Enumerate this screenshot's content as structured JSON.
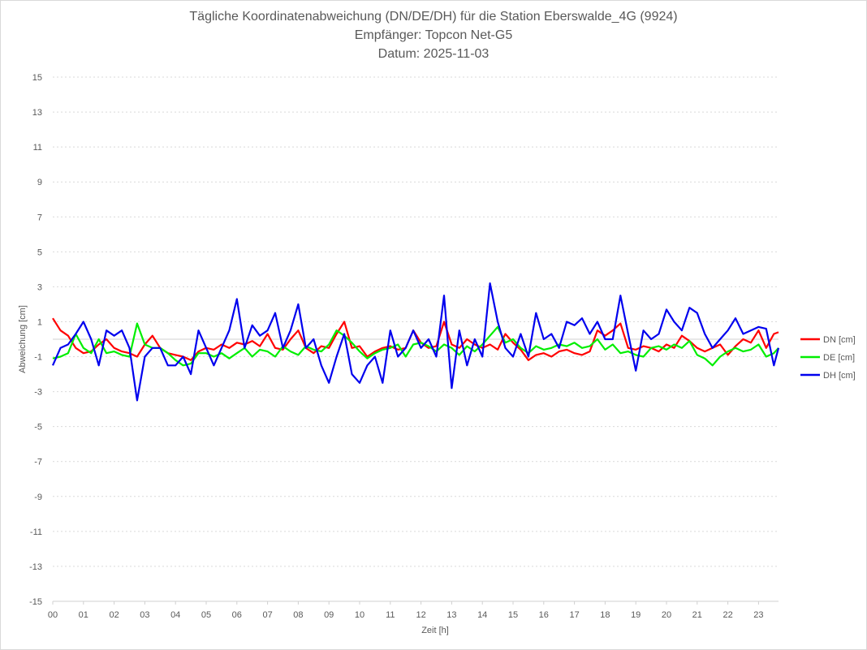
{
  "chart_data": {
    "type": "line",
    "title": "Tägliche Koordinatenabweichung (DN/DE/DH) für die Station Eberswalde_4G (9924)",
    "subtitle": [
      "Empfänger: Topcon Net-G5",
      "Datum: 2025-11-03"
    ],
    "xlabel": "Zeit [h]",
    "ylabel": "Abweichung [cm]",
    "xlim": [
      0,
      23.65
    ],
    "ylim": [
      -15,
      15
    ],
    "x_ticks": [
      "00",
      "01",
      "02",
      "03",
      "04",
      "05",
      "06",
      "07",
      "08",
      "09",
      "10",
      "11",
      "12",
      "13",
      "14",
      "15",
      "16",
      "17",
      "18",
      "19",
      "20",
      "21",
      "22",
      "23"
    ],
    "y_ticks": [
      15,
      13,
      11,
      9,
      7,
      5,
      3,
      1,
      -1,
      -3,
      -5,
      -7,
      -9,
      -11,
      -13,
      -15
    ],
    "grid": true,
    "legend_position": "right",
    "x": [
      0,
      0.25,
      0.5,
      0.75,
      1,
      1.25,
      1.5,
      1.75,
      2,
      2.25,
      2.5,
      2.75,
      3,
      3.25,
      3.5,
      3.75,
      4,
      4.25,
      4.5,
      4.75,
      5,
      5.25,
      5.5,
      5.75,
      6,
      6.25,
      6.5,
      6.75,
      7,
      7.25,
      7.5,
      7.75,
      8,
      8.25,
      8.5,
      8.75,
      9,
      9.25,
      9.5,
      9.75,
      10,
      10.25,
      10.5,
      10.75,
      11,
      11.25,
      11.5,
      11.75,
      12,
      12.25,
      12.5,
      12.75,
      13,
      13.25,
      13.5,
      13.75,
      14,
      14.25,
      14.5,
      14.75,
      15,
      15.25,
      15.5,
      15.75,
      16,
      16.25,
      16.5,
      16.75,
      17,
      17.25,
      17.5,
      17.75,
      18,
      18.25,
      18.5,
      18.75,
      19,
      19.25,
      19.5,
      19.75,
      20,
      20.25,
      20.5,
      20.75,
      21,
      21.25,
      21.5,
      21.75,
      22,
      22.25,
      22.5,
      22.75,
      23,
      23.25,
      23.5,
      23.65
    ],
    "series": [
      {
        "name": "DN [cm]",
        "color": "#ff0000",
        "values": [
          1.2,
          0.5,
          0.2,
          -0.5,
          -0.8,
          -0.7,
          -0.3,
          0.0,
          -0.5,
          -0.7,
          -0.8,
          -1.0,
          -0.3,
          0.2,
          -0.5,
          -0.8,
          -0.9,
          -1.0,
          -1.2,
          -0.7,
          -0.5,
          -0.6,
          -0.3,
          -0.5,
          -0.2,
          -0.3,
          -0.1,
          -0.4,
          0.3,
          -0.5,
          -0.6,
          0.0,
          0.5,
          -0.5,
          -0.8,
          -0.4,
          -0.5,
          0.3,
          1.0,
          -0.5,
          -0.4,
          -1.0,
          -0.7,
          -0.5,
          -0.4,
          -0.6,
          -0.5,
          0.5,
          -0.2,
          -0.5,
          -0.4,
          1.0,
          -0.3,
          -0.5,
          0.0,
          -0.3,
          -0.5,
          -0.3,
          -0.6,
          0.3,
          -0.2,
          -0.6,
          -1.2,
          -0.9,
          -0.8,
          -1.0,
          -0.7,
          -0.6,
          -0.8,
          -0.9,
          -0.7,
          0.5,
          0.2,
          0.5,
          0.9,
          -0.5,
          -0.6,
          -0.4,
          -0.5,
          -0.7,
          -0.3,
          -0.5,
          0.2,
          -0.1,
          -0.5,
          -0.7,
          -0.5,
          -0.3,
          -0.9,
          -0.4,
          0.0,
          -0.2,
          0.5,
          -0.5,
          0.3,
          0.4
        ]
      },
      {
        "name": "DE [cm]",
        "color": "#00ee00",
        "values": [
          -1.1,
          -1.0,
          -0.8,
          0.3,
          -0.5,
          -0.8,
          0.0,
          -0.8,
          -0.7,
          -0.9,
          -1.0,
          0.9,
          -0.3,
          -0.5,
          -0.5,
          -0.8,
          -1.2,
          -1.5,
          -1.4,
          -0.8,
          -0.8,
          -1.0,
          -0.8,
          -1.1,
          -0.8,
          -0.5,
          -1.0,
          -0.6,
          -0.7,
          -1.0,
          -0.4,
          -0.7,
          -0.9,
          -0.4,
          -0.6,
          -0.7,
          -0.3,
          0.5,
          0.2,
          -0.2,
          -0.7,
          -1.1,
          -0.8,
          -0.6,
          -0.5,
          -0.3,
          -1.0,
          -0.3,
          -0.2,
          -0.4,
          -0.7,
          -0.3,
          -0.5,
          -0.9,
          -0.4,
          -0.7,
          -0.3,
          0.2,
          0.7,
          -0.2,
          0.0,
          -0.5,
          -0.8,
          -0.4,
          -0.6,
          -0.5,
          -0.3,
          -0.4,
          -0.2,
          -0.5,
          -0.4,
          0.0,
          -0.6,
          -0.3,
          -0.8,
          -0.7,
          -0.9,
          -1.0,
          -0.5,
          -0.4,
          -0.6,
          -0.3,
          -0.5,
          -0.1,
          -0.9,
          -1.1,
          -1.5,
          -1.0,
          -0.7,
          -0.5,
          -0.7,
          -0.6,
          -0.3,
          -1.0,
          -0.8,
          -0.5
        ]
      },
      {
        "name": "DH [cm]",
        "color": "#0000ee",
        "values": [
          -1.5,
          -0.5,
          -0.3,
          0.3,
          1.0,
          0.0,
          -1.5,
          0.5,
          0.2,
          0.5,
          -0.5,
          -3.5,
          -1.0,
          -0.5,
          -0.5,
          -1.5,
          -1.5,
          -1.0,
          -2.0,
          0.5,
          -0.5,
          -1.5,
          -0.5,
          0.5,
          2.3,
          -0.5,
          0.8,
          0.2,
          0.5,
          1.5,
          -0.5,
          0.5,
          2.0,
          -0.5,
          0.0,
          -1.5,
          -2.5,
          -1.0,
          0.3,
          -2.0,
          -2.5,
          -1.5,
          -1.0,
          -2.5,
          0.5,
          -1.0,
          -0.5,
          0.5,
          -0.5,
          0.0,
          -1.0,
          2.5,
          -2.8,
          0.5,
          -1.5,
          0.0,
          -1.0,
          3.2,
          1.0,
          -0.5,
          -1.0,
          0.3,
          -1.0,
          1.5,
          0.0,
          0.3,
          -0.5,
          1.0,
          0.8,
          1.2,
          0.3,
          1.0,
          0.0,
          0.0,
          2.5,
          0.3,
          -1.8,
          0.5,
          0.0,
          0.3,
          1.7,
          1.0,
          0.5,
          1.8,
          1.5,
          0.3,
          -0.5,
          0.0,
          0.5,
          1.2,
          0.3,
          0.5,
          0.7,
          0.6,
          -1.5,
          -0.5
        ]
      }
    ]
  }
}
